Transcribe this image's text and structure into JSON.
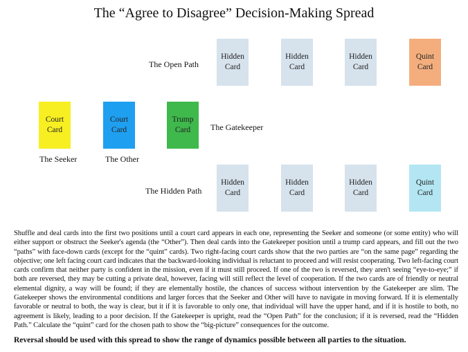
{
  "title": "The “Agree to Disagree” Decision-Making Spread",
  "colors": {
    "hidden": "#d6e2ec",
    "quint_open": "#f4ae7e",
    "quint_hidden": "#b3e6f2",
    "seeker": "#f7ef22",
    "other": "#1f9ff0",
    "trump": "#3fb84c"
  },
  "labels": {
    "open_path": "The Open Path",
    "gatekeeper": "The Gatekeeper",
    "seeker": "The Seeker",
    "other": "The Other",
    "hidden_path": "The Hidden Path"
  },
  "cards": {
    "hidden": [
      "Hidden",
      "Card"
    ],
    "quint": [
      "Quint",
      "Card"
    ],
    "court": [
      "Court",
      "Card"
    ],
    "trump": [
      "Trump",
      "Card"
    ]
  },
  "paragraph": "Shuffle and deal cards into the first two positions until a court card appears in each one, representing the Seeker and someone (or some entity) who will either support or obstruct the Seeker's agenda (the “Other”). Then deal cards into the Gatekeeper position until a trump card appears, and fill out the two “paths” with face-down cards (except for the “quint” cards). Two right-facing court cards show that the two parties are “on the same page” regarding the objective; one left facing court card indicates that the backward-looking individual is reluctant to proceed and will resist cooperating. Two left-facing court cards confirm that neither party is confident in the mission, even if it must still proceed. If one of the two is reversed, they aren't seeing “eye-to-eye;” if both are reversed, they may be cutting a private deal, however, facing will still reflect the level of cooperation. If the two cards are of friendly or neutral elemental dignity, a way will be found; if they are elementally hostile, the  chances of success without intervention by the Gatekeeper are slim. The Gatekeeper shows the environmental conditions and larger forces that the Seeker and Other will have to navigate in moving forward. If it is elementally favorable or neutral to both, the way is clear, but it if it is favorable to only one, that individual will have the upper hand, and if it is hostile to both, no agreement is likely, leading to a poor decision. If the Gatekeeper is upright, read the “Open Path” for the conclusion; if it is reversed, read the “Hidden Path.” Calculate the “quint” card for the chosen path  to show the “big-picture” consequences for the outcome.",
  "note": "Reversal should be used with this spread to show the range of dynamics possible between all parties to the situation."
}
